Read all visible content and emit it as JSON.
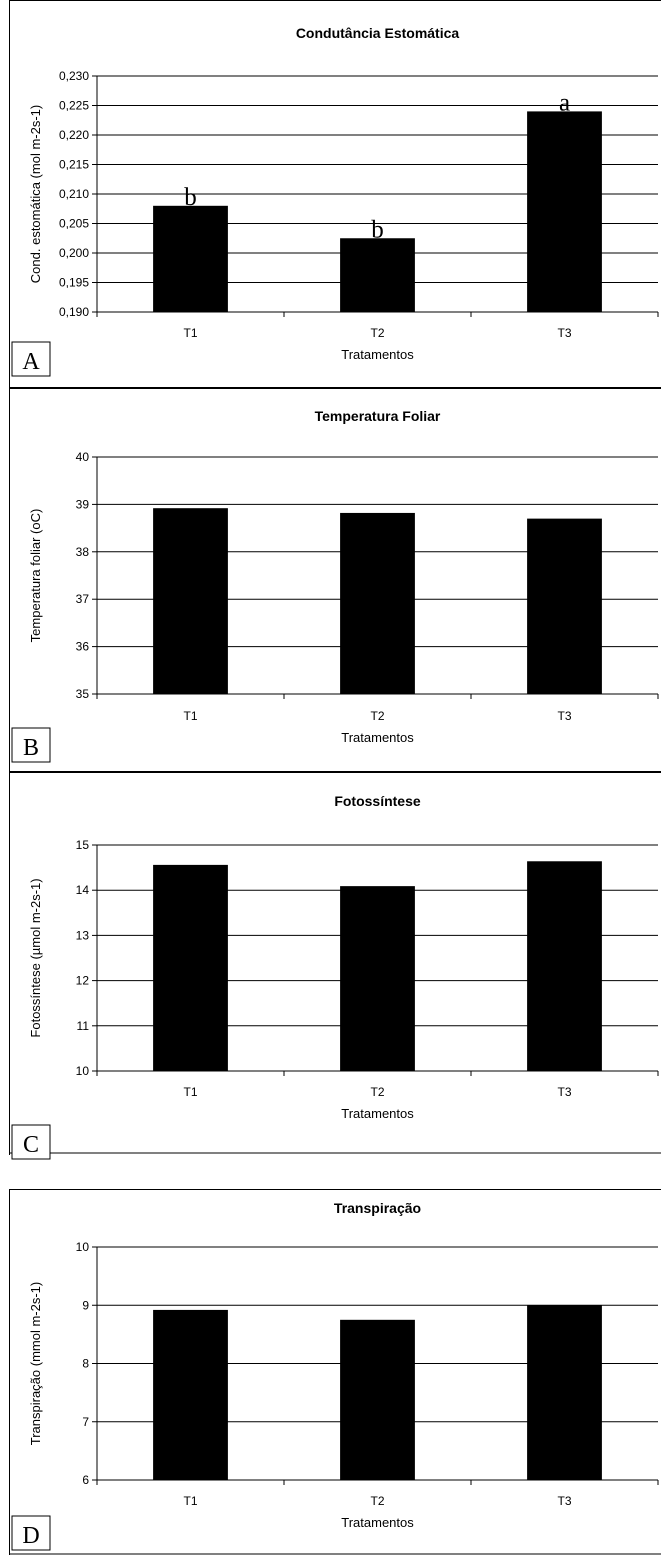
{
  "chart_data": [
    {
      "type": "bar",
      "panel_label": "A",
      "title": "Condutância Estomática",
      "xlabel": "Tratamentos",
      "ylabel": "Cond. estomática (mol m-2s-1)",
      "categories": [
        "T1",
        "T2",
        "T3"
      ],
      "values": [
        0.208,
        0.2025,
        0.224
      ],
      "bar_labels": [
        "b",
        "b",
        "a"
      ],
      "ylim": [
        0.19,
        0.23
      ],
      "yticks": [
        "0,190",
        "0,195",
        "0,200",
        "0,205",
        "0,210",
        "0,215",
        "0,220",
        "0,225",
        "0,230"
      ],
      "grid": true,
      "bar_color": "#000000"
    },
    {
      "type": "bar",
      "panel_label": "B",
      "title": "Temperatura Foliar",
      "xlabel": "Tratamentos",
      "ylabel": "Temperatura foliar (oC)",
      "categories": [
        "T1",
        "T2",
        "T3"
      ],
      "values": [
        38.92,
        38.82,
        38.7
      ],
      "ylim": [
        35,
        40
      ],
      "yticks": [
        "35",
        "36",
        "37",
        "38",
        "39",
        "40"
      ],
      "grid": true,
      "bar_color": "#000000"
    },
    {
      "type": "bar",
      "panel_label": "C",
      "title": "Fotossíntese",
      "xlabel": "Tratamentos",
      "ylabel": "Fotossíntese (µmol m-2s-1)",
      "categories": [
        "T1",
        "T2",
        "T3"
      ],
      "values": [
        14.56,
        14.09,
        14.64
      ],
      "ylim": [
        10,
        15
      ],
      "yticks": [
        "10",
        "11",
        "12",
        "13",
        "14",
        "15"
      ],
      "grid": true,
      "bar_color": "#000000"
    },
    {
      "type": "bar",
      "panel_label": "D",
      "title": "Transpiração",
      "xlabel": "Tratamentos",
      "ylabel": "Transpiração (mmol m-2s-1)",
      "categories": [
        "T1",
        "T2",
        "T3"
      ],
      "values": [
        8.92,
        8.75,
        9.0
      ],
      "ylim": [
        6,
        10
      ],
      "yticks": [
        "6",
        "7",
        "8",
        "9",
        "10"
      ],
      "grid": true,
      "bar_color": "#000000"
    }
  ]
}
